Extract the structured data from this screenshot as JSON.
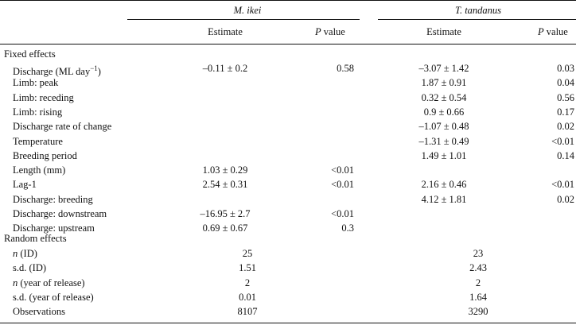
{
  "species": {
    "a": "M. ikei",
    "b": "T. tandanus"
  },
  "cols": {
    "estimate": "Estimate",
    "p_italic": "P",
    "p_rest": "value"
  },
  "sections": {
    "fixed": "Fixed effects",
    "random": "Random effects"
  },
  "fixed_rows": [
    {
      "label": "Discharge (ML day",
      "label_sup": "−1",
      "label_tail": ")",
      "a_est": "–0.11 ± 0.2",
      "a_p": "0.58",
      "b_est": "–3.07 ± 1.42",
      "b_p": "0.03"
    },
    {
      "label": "Limb: peak",
      "a_est": "",
      "a_p": "",
      "b_est": "1.87 ± 0.91",
      "b_p": "0.04"
    },
    {
      "label": "Limb: receding",
      "a_est": "",
      "a_p": "",
      "b_est": "0.32 ± 0.54",
      "b_p": "0.56"
    },
    {
      "label": "Limb: rising",
      "a_est": "",
      "a_p": "",
      "b_est": "0.9 ± 0.66",
      "b_p": "0.17"
    },
    {
      "label": "Discharge rate of change",
      "a_est": "",
      "a_p": "",
      "b_est": "–1.07 ± 0.48",
      "b_p": "0.02"
    },
    {
      "label": "Temperature",
      "a_est": "",
      "a_p": "",
      "b_est": "–1.31 ± 0.49",
      "b_p": "<0.01"
    },
    {
      "label": "Breeding period",
      "a_est": "",
      "a_p": "",
      "b_est": "1.49 ± 1.01",
      "b_p": "0.14"
    },
    {
      "label": "Length (mm)",
      "a_est": "1.03 ± 0.29",
      "a_p": "<0.01",
      "b_est": "",
      "b_p": ""
    },
    {
      "label": "Lag-1",
      "a_est": "2.54 ± 0.31",
      "a_p": "<0.01",
      "b_est": "2.16 ± 0.46",
      "b_p": "<0.01"
    },
    {
      "label": "Discharge: breeding",
      "a_est": "",
      "a_p": "",
      "b_est": "4.12 ± 1.81",
      "b_p": "0.02"
    },
    {
      "label": "Discharge: downstream",
      "a_est": "–16.95 ± 2.7",
      "a_p": "<0.01",
      "b_est": "",
      "b_p": ""
    },
    {
      "label": "Discharge: upstream",
      "a_est": "0.69 ± 0.67",
      "a_p": "0.3",
      "b_est": "",
      "b_p": ""
    }
  ],
  "random_rows": [
    {
      "label_italic": "n",
      "label": " (ID)",
      "a": "25",
      "b": "23"
    },
    {
      "label_italic": "",
      "label": "s.d. (ID)",
      "a": "1.51",
      "b": "2.43"
    },
    {
      "label_italic": "n",
      "label": " (year of release)",
      "a": "2",
      "b": "2"
    },
    {
      "label_italic": "",
      "label": "s.d. (year of release)",
      "a": "0.01",
      "b": "1.64"
    },
    {
      "label_italic": "",
      "label": "Observations",
      "a": "8107",
      "b": "3290"
    }
  ]
}
